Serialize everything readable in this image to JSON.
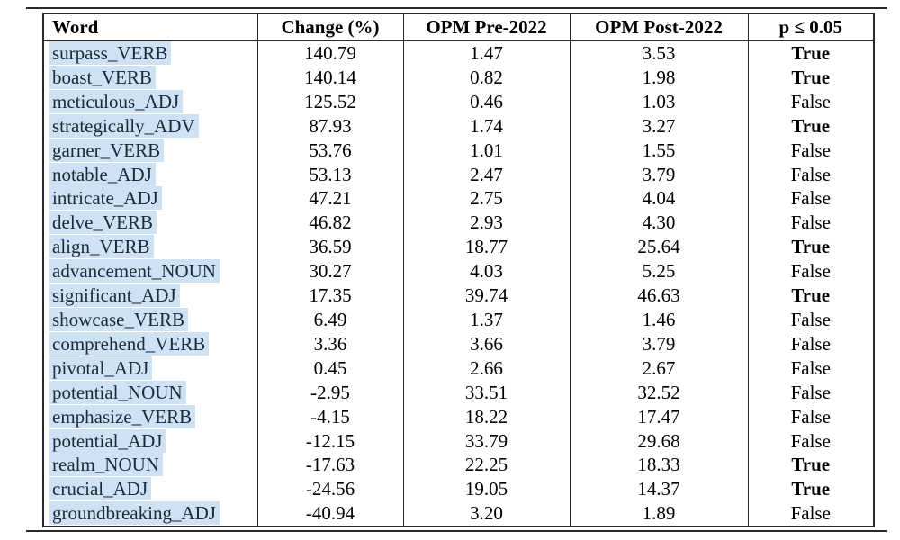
{
  "colors": {
    "highlight": "#cfe2f3",
    "word_text": "#1b2a3a",
    "rule": "#2a2a2a",
    "body_text": "#000000",
    "background": "#ffffff"
  },
  "table": {
    "headers": {
      "word": "Word",
      "change": "Change (%)",
      "opm_pre": "OPM Pre-2022",
      "opm_post": "OPM Post-2022",
      "significance": "p ≤ 0.05"
    },
    "rows": [
      {
        "word": "surpass_VERB",
        "change": "140.79",
        "opm_pre": "1.47",
        "opm_post": "3.53",
        "significant": "True"
      },
      {
        "word": "boast_VERB",
        "change": "140.14",
        "opm_pre": "0.82",
        "opm_post": "1.98",
        "significant": "True"
      },
      {
        "word": "meticulous_ADJ",
        "change": "125.52",
        "opm_pre": "0.46",
        "opm_post": "1.03",
        "significant": "False"
      },
      {
        "word": "strategically_ADV",
        "change": "87.93",
        "opm_pre": "1.74",
        "opm_post": "3.27",
        "significant": "True"
      },
      {
        "word": "garner_VERB",
        "change": "53.76",
        "opm_pre": "1.01",
        "opm_post": "1.55",
        "significant": "False"
      },
      {
        "word": "notable_ADJ",
        "change": "53.13",
        "opm_pre": "2.47",
        "opm_post": "3.79",
        "significant": "False"
      },
      {
        "word": "intricate_ADJ",
        "change": "47.21",
        "opm_pre": "2.75",
        "opm_post": "4.04",
        "significant": "False"
      },
      {
        "word": "delve_VERB",
        "change": "46.82",
        "opm_pre": "2.93",
        "opm_post": "4.30",
        "significant": "False"
      },
      {
        "word": "align_VERB",
        "change": "36.59",
        "opm_pre": "18.77",
        "opm_post": "25.64",
        "significant": "True"
      },
      {
        "word": "advancement_NOUN",
        "change": "30.27",
        "opm_pre": "4.03",
        "opm_post": "5.25",
        "significant": "False"
      },
      {
        "word": "significant_ADJ",
        "change": "17.35",
        "opm_pre": "39.74",
        "opm_post": "46.63",
        "significant": "True"
      },
      {
        "word": "showcase_VERB",
        "change": "6.49",
        "opm_pre": "1.37",
        "opm_post": "1.46",
        "significant": "False"
      },
      {
        "word": "comprehend_VERB",
        "change": "3.36",
        "opm_pre": "3.66",
        "opm_post": "3.79",
        "significant": "False"
      },
      {
        "word": "pivotal_ADJ",
        "change": "0.45",
        "opm_pre": "2.66",
        "opm_post": "2.67",
        "significant": "False"
      },
      {
        "word": "potential_NOUN",
        "change": "-2.95",
        "opm_pre": "33.51",
        "opm_post": "32.52",
        "significant": "False"
      },
      {
        "word": "emphasize_VERB",
        "change": "-4.15",
        "opm_pre": "18.22",
        "opm_post": "17.47",
        "significant": "False"
      },
      {
        "word": "potential_ADJ",
        "change": "-12.15",
        "opm_pre": "33.79",
        "opm_post": "29.68",
        "significant": "False"
      },
      {
        "word": "realm_NOUN",
        "change": "-17.63",
        "opm_pre": "22.25",
        "opm_post": "18.33",
        "significant": "True"
      },
      {
        "word": "crucial_ADJ",
        "change": "-24.56",
        "opm_pre": "19.05",
        "opm_post": "14.37",
        "significant": "True"
      },
      {
        "word": "groundbreaking_ADJ",
        "change": "-40.94",
        "opm_pre": "3.20",
        "opm_post": "1.89",
        "significant": "False"
      }
    ]
  }
}
